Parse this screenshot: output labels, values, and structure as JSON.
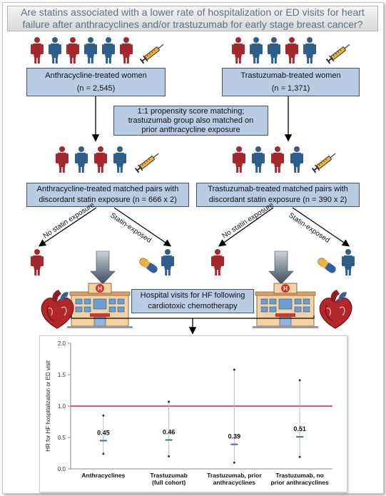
{
  "title": "Are statins associated with a lower rate of hospitalization or ED visits for heart failure after anthracyclines and/or trastuzumab for early stage breast cancer?",
  "cohorts": {
    "anthracycline": {
      "label": "Anthracycline-treated women",
      "n": "(n = 2,545)"
    },
    "trastuzumab": {
      "label": "Trastuzumab-treated women",
      "n": "(n = 1,371)"
    }
  },
  "matching": {
    "line1": "1:1 propensity score matching;",
    "line2": "trastuzumab group also matched on",
    "line3": "prior anthracycline exposure"
  },
  "matched_pairs": {
    "anthracycline": {
      "line1": "Anthracycline-treated matched pairs with",
      "line2": "discordant statin exposure (n = 666 x 2)"
    },
    "trastuzumab": {
      "line1": "Trastuzumab-treated matched pairs with",
      "line2": "discordant statin exposure (n = 390 x 2)"
    }
  },
  "branches": {
    "no_statin": "No statin exposure",
    "statin": "Statin-exposed"
  },
  "outcome": {
    "line1": "Hospital visits for HF following",
    "line2": "cardiotoxic chemotherapy"
  },
  "icons": {
    "woman_red": "#a5282c",
    "woman_blue": "#2e5f8c",
    "syringe": "syringe-icon",
    "heart": "heart-icon",
    "hospital": "hospital-icon",
    "pill": "pill-icon"
  },
  "chart_data": {
    "type": "scatter",
    "ylabel": "HR for HF hospitalization or ED visit",
    "ylim": [
      0,
      2.0
    ],
    "yticks": [
      "0.0",
      "0.5",
      "1.0",
      "1.5",
      "2.0"
    ],
    "reference_line": 1.0,
    "reference_color": "#e02020",
    "categories": [
      "Anthracyclines",
      "Trastuzumab (full cohort)",
      "Trastuzumab, prior anthracyclines",
      "Trastuzumab, no prior anthracyclines"
    ],
    "category_lines": [
      [
        "Anthracyclines"
      ],
      [
        "Trastuzumab",
        "(full cohort)"
      ],
      [
        "Trastuzumab, prior",
        "anthracyclines"
      ],
      [
        "Trastuzumab, no",
        "prior anthracyclines"
      ]
    ],
    "hr": [
      0.45,
      0.46,
      0.39,
      0.51
    ],
    "hr_labels": [
      "0.45",
      "0.46",
      "0.39",
      "0.51"
    ],
    "ci_lower": [
      0.24,
      0.2,
      0.1,
      0.19
    ],
    "ci_upper": [
      0.85,
      1.07,
      1.58,
      1.41
    ]
  }
}
